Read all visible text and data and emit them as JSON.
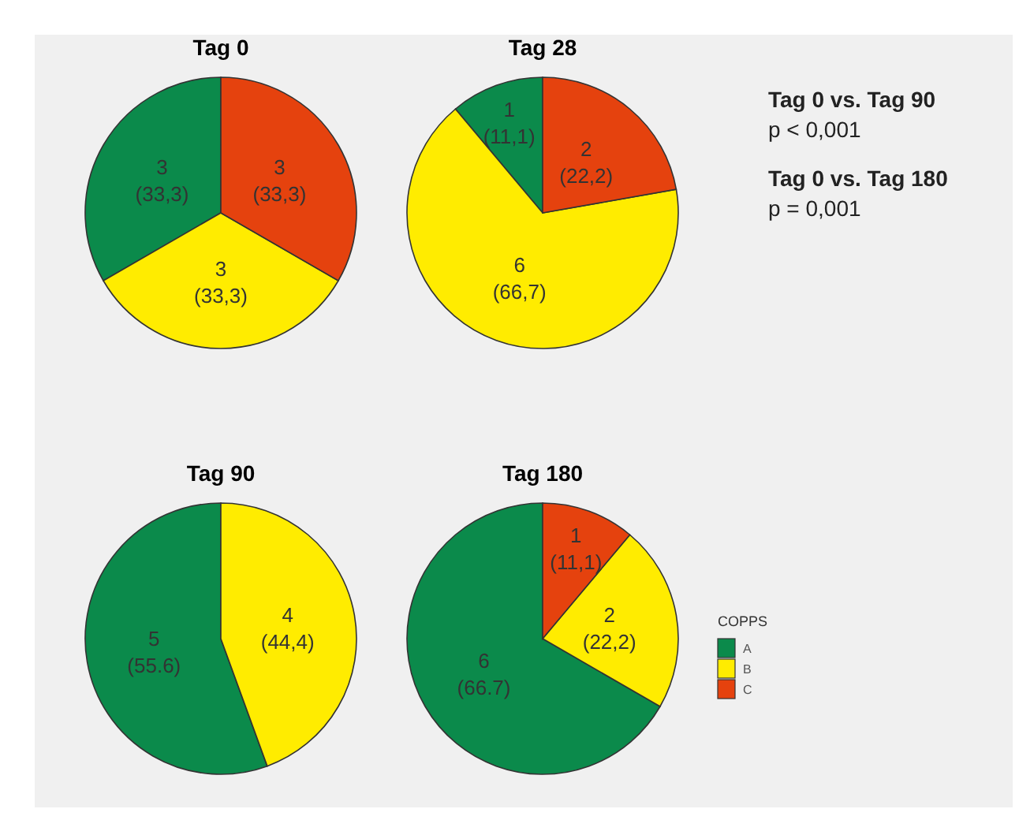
{
  "chart_data": [
    {
      "type": "pie",
      "title": "Tag 0",
      "categories": [
        null,
        null,
        null
      ],
      "values": [
        3,
        3,
        3
      ],
      "value_labels": [
        "3\n(33,3)",
        "3\n(33,3)",
        "3\n(33,3)"
      ],
      "colors": [
        "#0b8a4b",
        "#ffec00",
        "#e5420e"
      ]
    },
    {
      "type": "pie",
      "title": "Tag 28",
      "categories": [
        null,
        null,
        null
      ],
      "values": [
        1,
        6,
        2
      ],
      "value_labels": [
        "1\n(11,1)",
        "6\n(66,7)",
        "2\n(22,2)"
      ],
      "colors": [
        "#0b8a4b",
        "#ffec00",
        "#e5420e"
      ]
    },
    {
      "type": "pie",
      "title": "Tag 90",
      "categories": [
        null,
        null
      ],
      "values": [
        5,
        4
      ],
      "value_labels": [
        "5\n(55.6)",
        "4\n(44,4)"
      ],
      "colors": [
        "#0b8a4b",
        "#ffec00"
      ]
    },
    {
      "type": "pie",
      "title": "Tag 180",
      "categories": [
        "A",
        "B",
        "C"
      ],
      "values": [
        6,
        2,
        1
      ],
      "value_labels": [
        "6\n(66.7)",
        "2\n(22,2)",
        "1\n(11,1)"
      ],
      "colors": [
        "#0b8a4b",
        "#ffec00",
        "#e5420e"
      ],
      "legend": "right",
      "legend_title": "COPPS"
    },
    {
      "type": "other",
      "annotations": [
        "Tag 0 vs. Tag 90",
        "p < 0,001",
        "Tag 0 vs. Tag 180",
        "p = 0,001"
      ]
    }
  ]
}
